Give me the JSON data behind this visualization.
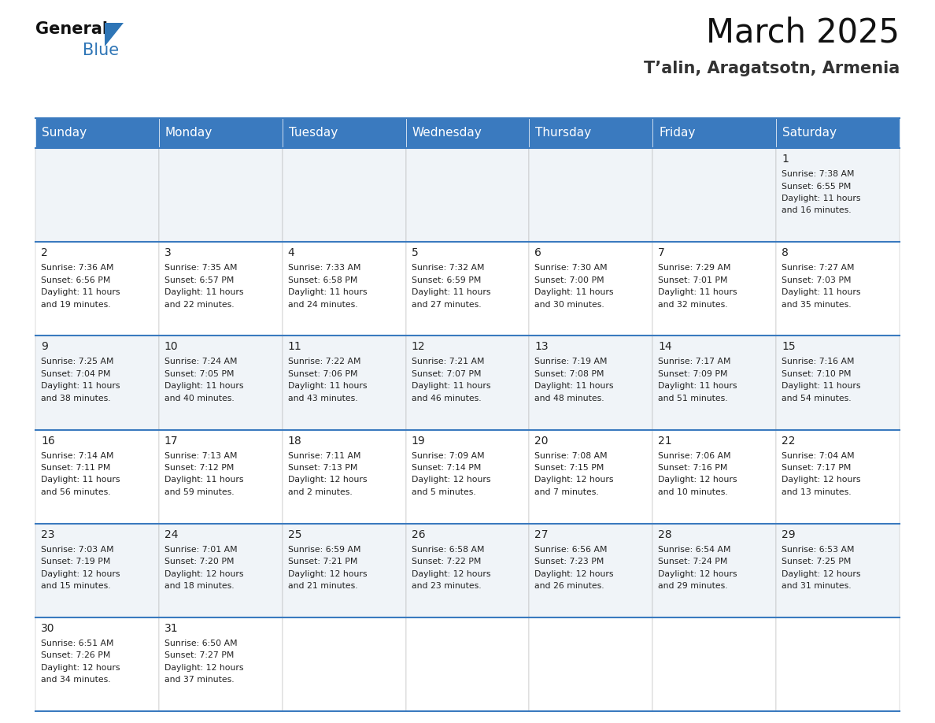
{
  "title": "March 2025",
  "subtitle": "T’alin, Aragatsotn, Armenia",
  "header_bg": "#3a7abf",
  "header_text": "#ffffff",
  "row0_bg": "#f0f4f8",
  "row1_bg": "#ffffff",
  "row2_bg": "#f0f4f8",
  "row3_bg": "#ffffff",
  "row4_bg": "#f0f4f8",
  "row5_bg": "#ffffff",
  "border_color": "#3a7abf",
  "cell_border_color": "#aaaaaa",
  "day_names": [
    "Sunday",
    "Monday",
    "Tuesday",
    "Wednesday",
    "Thursday",
    "Friday",
    "Saturday"
  ],
  "days": [
    {
      "date": 1,
      "col": 6,
      "row": 0,
      "sunrise": "7:38 AM",
      "sunset": "6:55 PM",
      "daylight": "11 hours and 16 minutes."
    },
    {
      "date": 2,
      "col": 0,
      "row": 1,
      "sunrise": "7:36 AM",
      "sunset": "6:56 PM",
      "daylight": "11 hours and 19 minutes."
    },
    {
      "date": 3,
      "col": 1,
      "row": 1,
      "sunrise": "7:35 AM",
      "sunset": "6:57 PM",
      "daylight": "11 hours and 22 minutes."
    },
    {
      "date": 4,
      "col": 2,
      "row": 1,
      "sunrise": "7:33 AM",
      "sunset": "6:58 PM",
      "daylight": "11 hours and 24 minutes."
    },
    {
      "date": 5,
      "col": 3,
      "row": 1,
      "sunrise": "7:32 AM",
      "sunset": "6:59 PM",
      "daylight": "11 hours and 27 minutes."
    },
    {
      "date": 6,
      "col": 4,
      "row": 1,
      "sunrise": "7:30 AM",
      "sunset": "7:00 PM",
      "daylight": "11 hours and 30 minutes."
    },
    {
      "date": 7,
      "col": 5,
      "row": 1,
      "sunrise": "7:29 AM",
      "sunset": "7:01 PM",
      "daylight": "11 hours and 32 minutes."
    },
    {
      "date": 8,
      "col": 6,
      "row": 1,
      "sunrise": "7:27 AM",
      "sunset": "7:03 PM",
      "daylight": "11 hours and 35 minutes."
    },
    {
      "date": 9,
      "col": 0,
      "row": 2,
      "sunrise": "7:25 AM",
      "sunset": "7:04 PM",
      "daylight": "11 hours and 38 minutes."
    },
    {
      "date": 10,
      "col": 1,
      "row": 2,
      "sunrise": "7:24 AM",
      "sunset": "7:05 PM",
      "daylight": "11 hours and 40 minutes."
    },
    {
      "date": 11,
      "col": 2,
      "row": 2,
      "sunrise": "7:22 AM",
      "sunset": "7:06 PM",
      "daylight": "11 hours and 43 minutes."
    },
    {
      "date": 12,
      "col": 3,
      "row": 2,
      "sunrise": "7:21 AM",
      "sunset": "7:07 PM",
      "daylight": "11 hours and 46 minutes."
    },
    {
      "date": 13,
      "col": 4,
      "row": 2,
      "sunrise": "7:19 AM",
      "sunset": "7:08 PM",
      "daylight": "11 hours and 48 minutes."
    },
    {
      "date": 14,
      "col": 5,
      "row": 2,
      "sunrise": "7:17 AM",
      "sunset": "7:09 PM",
      "daylight": "11 hours and 51 minutes."
    },
    {
      "date": 15,
      "col": 6,
      "row": 2,
      "sunrise": "7:16 AM",
      "sunset": "7:10 PM",
      "daylight": "11 hours and 54 minutes."
    },
    {
      "date": 16,
      "col": 0,
      "row": 3,
      "sunrise": "7:14 AM",
      "sunset": "7:11 PM",
      "daylight": "11 hours and 56 minutes."
    },
    {
      "date": 17,
      "col": 1,
      "row": 3,
      "sunrise": "7:13 AM",
      "sunset": "7:12 PM",
      "daylight": "11 hours and 59 minutes."
    },
    {
      "date": 18,
      "col": 2,
      "row": 3,
      "sunrise": "7:11 AM",
      "sunset": "7:13 PM",
      "daylight": "12 hours and 2 minutes."
    },
    {
      "date": 19,
      "col": 3,
      "row": 3,
      "sunrise": "7:09 AM",
      "sunset": "7:14 PM",
      "daylight": "12 hours and 5 minutes."
    },
    {
      "date": 20,
      "col": 4,
      "row": 3,
      "sunrise": "7:08 AM",
      "sunset": "7:15 PM",
      "daylight": "12 hours and 7 minutes."
    },
    {
      "date": 21,
      "col": 5,
      "row": 3,
      "sunrise": "7:06 AM",
      "sunset": "7:16 PM",
      "daylight": "12 hours and 10 minutes."
    },
    {
      "date": 22,
      "col": 6,
      "row": 3,
      "sunrise": "7:04 AM",
      "sunset": "7:17 PM",
      "daylight": "12 hours and 13 minutes."
    },
    {
      "date": 23,
      "col": 0,
      "row": 4,
      "sunrise": "7:03 AM",
      "sunset": "7:19 PM",
      "daylight": "12 hours and 15 minutes."
    },
    {
      "date": 24,
      "col": 1,
      "row": 4,
      "sunrise": "7:01 AM",
      "sunset": "7:20 PM",
      "daylight": "12 hours and 18 minutes."
    },
    {
      "date": 25,
      "col": 2,
      "row": 4,
      "sunrise": "6:59 AM",
      "sunset": "7:21 PM",
      "daylight": "12 hours and 21 minutes."
    },
    {
      "date": 26,
      "col": 3,
      "row": 4,
      "sunrise": "6:58 AM",
      "sunset": "7:22 PM",
      "daylight": "12 hours and 23 minutes."
    },
    {
      "date": 27,
      "col": 4,
      "row": 4,
      "sunrise": "6:56 AM",
      "sunset": "7:23 PM",
      "daylight": "12 hours and 26 minutes."
    },
    {
      "date": 28,
      "col": 5,
      "row": 4,
      "sunrise": "6:54 AM",
      "sunset": "7:24 PM",
      "daylight": "12 hours and 29 minutes."
    },
    {
      "date": 29,
      "col": 6,
      "row": 4,
      "sunrise": "6:53 AM",
      "sunset": "7:25 PM",
      "daylight": "12 hours and 31 minutes."
    },
    {
      "date": 30,
      "col": 0,
      "row": 5,
      "sunrise": "6:51 AM",
      "sunset": "7:26 PM",
      "daylight": "12 hours and 34 minutes."
    },
    {
      "date": 31,
      "col": 1,
      "row": 5,
      "sunrise": "6:50 AM",
      "sunset": "7:27 PM",
      "daylight": "12 hours and 37 minutes."
    }
  ],
  "num_rows": 6,
  "logo_triangle_color": "#2e75b6",
  "text_color": "#222222",
  "date_fontsize": 10,
  "info_fontsize": 7.8,
  "header_fontsize": 11,
  "title_fontsize": 30,
  "subtitle_fontsize": 15
}
